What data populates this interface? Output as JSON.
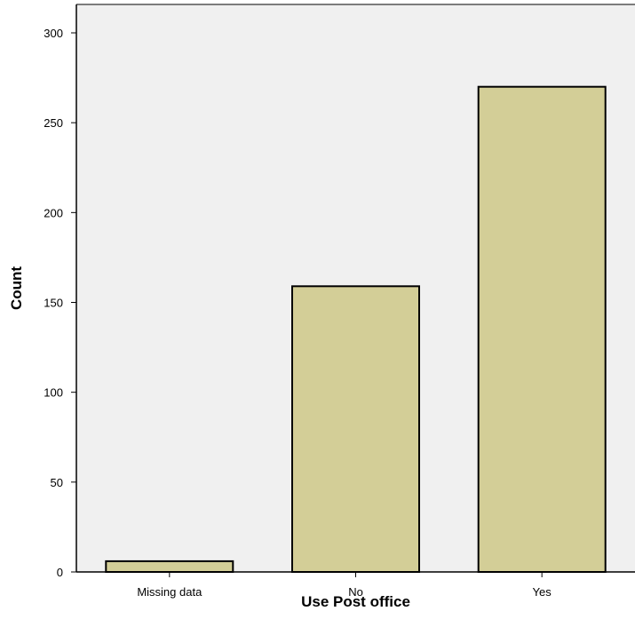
{
  "chart_data": {
    "type": "bar",
    "categories": [
      "Missing data",
      "No",
      "Yes"
    ],
    "values": [
      6,
      159,
      270
    ],
    "xlabel": "Use Post office",
    "ylabel": "Count",
    "ylim": [
      0,
      300
    ],
    "yticks": [
      0,
      50,
      100,
      150,
      200,
      250,
      300
    ],
    "grid": false,
    "colors": {
      "plot_background": "#f0f0f0",
      "bar_fill": "#d3ce97",
      "bar_stroke": "#000000"
    }
  }
}
